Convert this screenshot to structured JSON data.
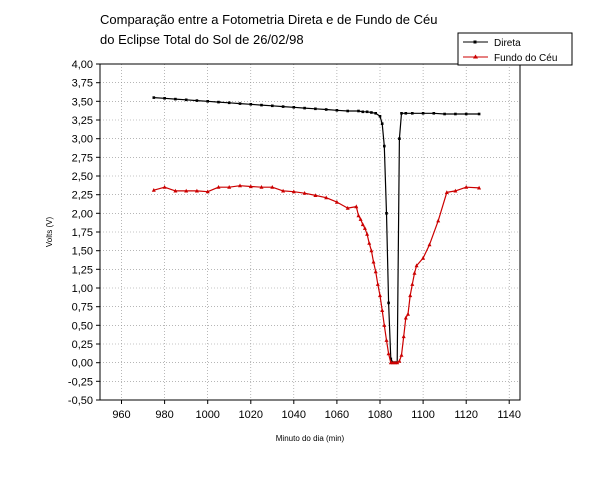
{
  "chart_data": {
    "type": "line",
    "title_lines": [
      "Comparação entre a Fotometria Direta e de Fundo de Céu",
      "do Eclipse Total do Sol de 26/02/98"
    ],
    "xlabel": "Minuto do dia (min)",
    "ylabel": "Volts (V)",
    "xlim": [
      950,
      1145
    ],
    "ylim": [
      -0.5,
      4.0
    ],
    "x_ticks": [
      960,
      980,
      1000,
      1020,
      1040,
      1060,
      1080,
      1100,
      1120,
      1140
    ],
    "y_ticks": [
      -0.5,
      -0.25,
      0.0,
      0.25,
      0.5,
      0.75,
      1.0,
      1.25,
      1.5,
      1.75,
      2.0,
      2.25,
      2.5,
      2.75,
      3.0,
      3.25,
      3.5,
      3.75,
      4.0
    ],
    "x_tick_labels": [
      "960",
      "980",
      "1000",
      "1020",
      "1040",
      "1060",
      "1080",
      "1100",
      "1120",
      "1140"
    ],
    "y_tick_labels": [
      "-0,50",
      "-0,25",
      "0,00",
      "0,25",
      "0,50",
      "0,75",
      "1,00",
      "1,25",
      "1,50",
      "1,75",
      "2,00",
      "2,25",
      "2,50",
      "2,75",
      "3,00",
      "3,25",
      "3,50",
      "3,75",
      "4,00"
    ],
    "grid": true,
    "legend_position": "top-right",
    "series": [
      {
        "name": "Direta",
        "color": "#000000",
        "marker": "square",
        "points": [
          [
            975,
            3.55
          ],
          [
            980,
            3.54
          ],
          [
            985,
            3.53
          ],
          [
            990,
            3.52
          ],
          [
            995,
            3.51
          ],
          [
            1000,
            3.5
          ],
          [
            1005,
            3.49
          ],
          [
            1010,
            3.48
          ],
          [
            1015,
            3.47
          ],
          [
            1020,
            3.46
          ],
          [
            1025,
            3.45
          ],
          [
            1030,
            3.44
          ],
          [
            1035,
            3.43
          ],
          [
            1040,
            3.42
          ],
          [
            1045,
            3.41
          ],
          [
            1050,
            3.4
          ],
          [
            1055,
            3.39
          ],
          [
            1060,
            3.38
          ],
          [
            1065,
            3.37
          ],
          [
            1070,
            3.37
          ],
          [
            1072,
            3.36
          ],
          [
            1074,
            3.36
          ],
          [
            1076,
            3.35
          ],
          [
            1078,
            3.34
          ],
          [
            1080,
            3.3
          ],
          [
            1081,
            3.2
          ],
          [
            1082,
            2.9
          ],
          [
            1083,
            2.0
          ],
          [
            1084,
            0.8
          ],
          [
            1085,
            0.05
          ],
          [
            1086,
            0.0
          ],
          [
            1087,
            0.0
          ],
          [
            1088,
            0.0
          ],
          [
            1089,
            3.0
          ],
          [
            1090,
            3.34
          ],
          [
            1092,
            3.34
          ],
          [
            1095,
            3.34
          ],
          [
            1100,
            3.34
          ],
          [
            1105,
            3.34
          ],
          [
            1110,
            3.33
          ],
          [
            1115,
            3.33
          ],
          [
            1120,
            3.33
          ],
          [
            1126,
            3.33
          ]
        ]
      },
      {
        "name": "Fundo do Céu",
        "color": "#cc0000",
        "marker": "triangle",
        "points": [
          [
            975,
            2.31
          ],
          [
            980,
            2.35
          ],
          [
            985,
            2.3
          ],
          [
            990,
            2.3
          ],
          [
            995,
            2.3
          ],
          [
            1000,
            2.29
          ],
          [
            1005,
            2.35
          ],
          [
            1010,
            2.35
          ],
          [
            1015,
            2.37
          ],
          [
            1020,
            2.36
          ],
          [
            1025,
            2.35
          ],
          [
            1030,
            2.35
          ],
          [
            1035,
            2.3
          ],
          [
            1040,
            2.29
          ],
          [
            1045,
            2.27
          ],
          [
            1050,
            2.24
          ],
          [
            1055,
            2.21
          ],
          [
            1060,
            2.15
          ],
          [
            1065,
            2.07
          ],
          [
            1069,
            2.09
          ],
          [
            1070,
            1.97
          ],
          [
            1071,
            1.92
          ],
          [
            1072,
            1.85
          ],
          [
            1073,
            1.8
          ],
          [
            1074,
            1.72
          ],
          [
            1075,
            1.6
          ],
          [
            1076,
            1.5
          ],
          [
            1077,
            1.35
          ],
          [
            1078,
            1.22
          ],
          [
            1079,
            1.05
          ],
          [
            1080,
            0.9
          ],
          [
            1081,
            0.7
          ],
          [
            1082,
            0.5
          ],
          [
            1083,
            0.3
          ],
          [
            1084,
            0.12
          ],
          [
            1085,
            0.0
          ],
          [
            1086,
            0.0
          ],
          [
            1087,
            0.0
          ],
          [
            1088,
            0.0
          ],
          [
            1089,
            0.02
          ],
          [
            1090,
            0.1
          ],
          [
            1091,
            0.35
          ],
          [
            1092,
            0.6
          ],
          [
            1093,
            0.65
          ],
          [
            1094,
            0.9
          ],
          [
            1095,
            1.05
          ],
          [
            1096,
            1.2
          ],
          [
            1097,
            1.3
          ],
          [
            1100,
            1.4
          ],
          [
            1103,
            1.58
          ],
          [
            1107,
            1.9
          ],
          [
            1111,
            2.28
          ],
          [
            1115,
            2.3
          ],
          [
            1120,
            2.35
          ],
          [
            1126,
            2.34
          ]
        ]
      }
    ]
  }
}
